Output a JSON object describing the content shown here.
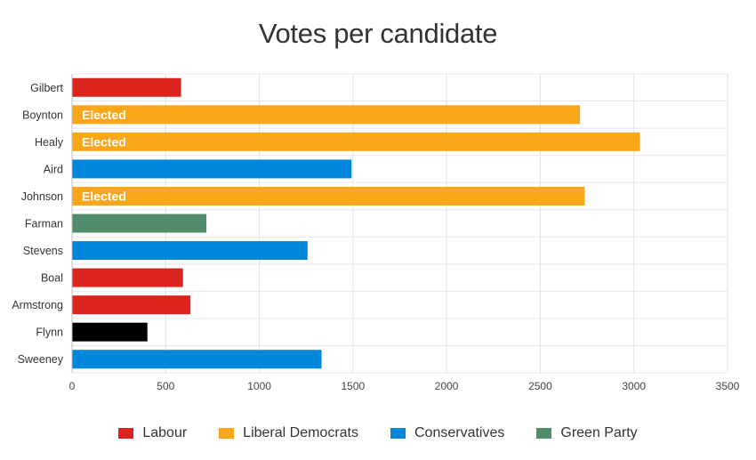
{
  "chart_data": {
    "type": "bar",
    "orientation": "horizontal",
    "title": "Votes per candidate",
    "xlabel": "",
    "ylabel": "",
    "xlim": [
      0,
      3500
    ],
    "x_ticks": [
      0,
      500,
      1000,
      1500,
      2000,
      2500,
      3000,
      3500
    ],
    "grid": true,
    "legend_position": "bottom",
    "parties": [
      {
        "name": "Labour",
        "color": "#dc241f"
      },
      {
        "name": "Liberal Democrats",
        "color": "#faa61a"
      },
      {
        "name": "Conservatives",
        "color": "#0087dc"
      },
      {
        "name": "Green Party",
        "color": "#528d6b"
      }
    ],
    "independent_color": "#000000",
    "candidates": [
      {
        "name": "Gilbert",
        "votes": 580,
        "party": "Labour",
        "color": "#dc241f",
        "label": ""
      },
      {
        "name": "Boynton",
        "votes": 2710,
        "party": "Liberal Democrats",
        "color": "#faa61a",
        "label": "Elected"
      },
      {
        "name": "Healy",
        "votes": 3030,
        "party": "Liberal Democrats",
        "color": "#faa61a",
        "label": "Elected"
      },
      {
        "name": "Aird",
        "votes": 1490,
        "party": "Conservatives",
        "color": "#0087dc",
        "label": ""
      },
      {
        "name": "Johnson",
        "votes": 2735,
        "party": "Liberal Democrats",
        "color": "#faa61a",
        "label": "Elected"
      },
      {
        "name": "Farman",
        "votes": 715,
        "party": "Green Party",
        "color": "#528d6b",
        "label": ""
      },
      {
        "name": "Stevens",
        "votes": 1255,
        "party": "Conservatives",
        "color": "#0087dc",
        "label": ""
      },
      {
        "name": "Boal",
        "votes": 590,
        "party": "Labour",
        "color": "#dc241f",
        "label": ""
      },
      {
        "name": "Armstrong",
        "votes": 630,
        "party": "Labour",
        "color": "#dc241f",
        "label": ""
      },
      {
        "name": "Flynn",
        "votes": 400,
        "party": "",
        "color": "#000000",
        "label": ""
      },
      {
        "name": "Sweeney",
        "votes": 1330,
        "party": "Conservatives",
        "color": "#0087dc",
        "label": ""
      }
    ]
  }
}
